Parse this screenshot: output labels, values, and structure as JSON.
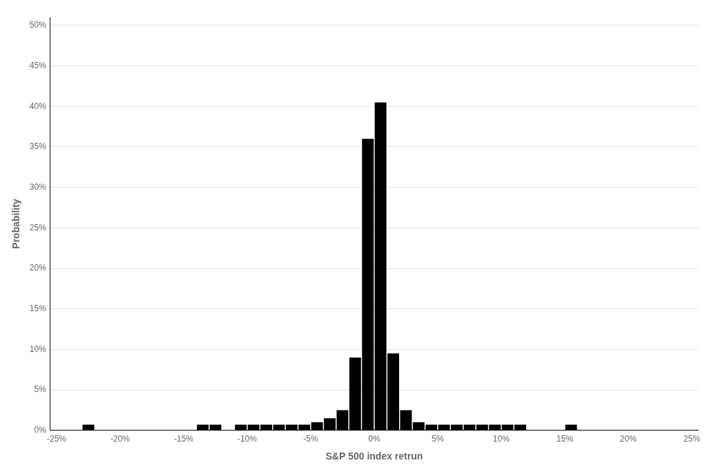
{
  "chart_data": {
    "type": "bar",
    "xlabel": "S&P 500 index retrun",
    "ylabel": "Probability",
    "x": [
      -0.225,
      -0.135,
      -0.125,
      -0.105,
      -0.095,
      -0.085,
      -0.075,
      -0.065,
      -0.055,
      -0.045,
      -0.035,
      -0.025,
      -0.015,
      -0.005,
      0.005,
      0.015,
      0.025,
      0.035,
      0.045,
      0.055,
      0.065,
      0.075,
      0.085,
      0.095,
      0.105,
      0.115,
      0.155
    ],
    "values": [
      0.007,
      0.007,
      0.007,
      0.007,
      0.007,
      0.007,
      0.007,
      0.007,
      0.007,
      0.01,
      0.015,
      0.025,
      0.09,
      0.36,
      0.405,
      0.095,
      0.025,
      0.01,
      0.007,
      0.007,
      0.007,
      0.007,
      0.007,
      0.007,
      0.007,
      0.007,
      0.007
    ],
    "color": "#000000",
    "xlim": [
      -0.255,
      0.255
    ],
    "ylim": [
      0,
      0.51
    ],
    "xticks": [
      {
        "value": -0.25,
        "label": "-25%"
      },
      {
        "value": -0.2,
        "label": "-20%"
      },
      {
        "value": -0.15,
        "label": "-15%"
      },
      {
        "value": -0.1,
        "label": "-10%"
      },
      {
        "value": -0.05,
        "label": "-5%"
      },
      {
        "value": 0.0,
        "label": "0%"
      },
      {
        "value": 0.05,
        "label": "5%"
      },
      {
        "value": 0.1,
        "label": "10%"
      },
      {
        "value": 0.15,
        "label": "15%"
      },
      {
        "value": 0.2,
        "label": "20%"
      },
      {
        "value": 0.25,
        "label": "25%"
      }
    ],
    "yticks": [
      {
        "value": 0.0,
        "label": "0%"
      },
      {
        "value": 0.05,
        "label": "5%"
      },
      {
        "value": 0.1,
        "label": "10%"
      },
      {
        "value": 0.15,
        "label": "15%"
      },
      {
        "value": 0.2,
        "label": "20%"
      },
      {
        "value": 0.25,
        "label": "25%"
      },
      {
        "value": 0.3,
        "label": "30%"
      },
      {
        "value": 0.35,
        "label": "35%"
      },
      {
        "value": 0.4,
        "label": "40%"
      },
      {
        "value": 0.45,
        "label": "45%"
      },
      {
        "value": 0.5,
        "label": "50%"
      }
    ],
    "grid": "y"
  }
}
